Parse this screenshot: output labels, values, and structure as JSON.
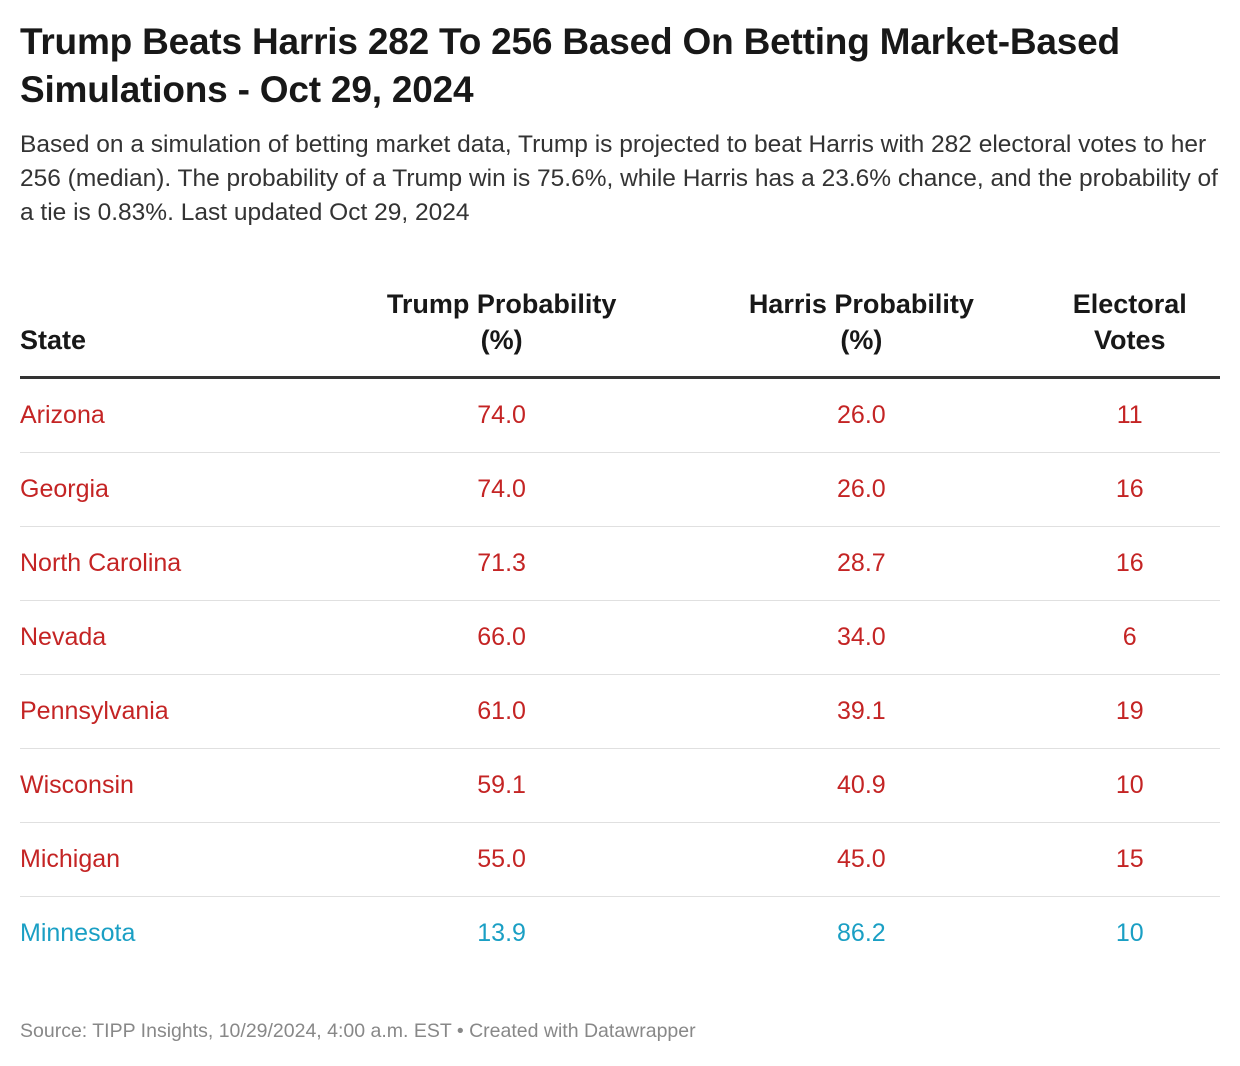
{
  "title": "Trump Beats Harris 282 To 256 Based On Betting Market-Based Simulations - Oct 29, 2024",
  "subtitle": "Based on a simulation of betting market data, Trump is projected to beat Harris with 282 electoral votes to her 256 (median). The probability of a Trump win is 75.6%, while Harris has a 23.6% chance, and the probability of a tie is 0.83%. Last updated Oct 29, 2024",
  "colors": {
    "trump": "#c42424",
    "harris": "#1a9fc4"
  },
  "table": {
    "headers": {
      "state": "State",
      "trump_line1": "Trump Probability",
      "trump_line2": "(%)",
      "harris_line1": "Harris Probability",
      "harris_line2": "(%)",
      "ev_line1": "Electoral",
      "ev_line2": "Votes"
    },
    "rows": [
      {
        "state": "Arizona",
        "trump": "74.0",
        "harris": "26.0",
        "ev": "11",
        "lean": "trump"
      },
      {
        "state": "Georgia",
        "trump": "74.0",
        "harris": "26.0",
        "ev": "16",
        "lean": "trump"
      },
      {
        "state": "North Carolina",
        "trump": "71.3",
        "harris": "28.7",
        "ev": "16",
        "lean": "trump"
      },
      {
        "state": "Nevada",
        "trump": "66.0",
        "harris": "34.0",
        "ev": "6",
        "lean": "trump"
      },
      {
        "state": "Pennsylvania",
        "trump": "61.0",
        "harris": "39.1",
        "ev": "19",
        "lean": "trump"
      },
      {
        "state": "Wisconsin",
        "trump": "59.1",
        "harris": "40.9",
        "ev": "10",
        "lean": "trump"
      },
      {
        "state": "Michigan",
        "trump": "55.0",
        "harris": "45.0",
        "ev": "15",
        "lean": "trump"
      },
      {
        "state": "Minnesota",
        "trump": "13.9",
        "harris": "86.2",
        "ev": "10",
        "lean": "harris"
      }
    ]
  },
  "footer": "Source: TIPP Insights, 10/29/2024, 4:00 a.m. EST • Created with Datawrapper"
}
